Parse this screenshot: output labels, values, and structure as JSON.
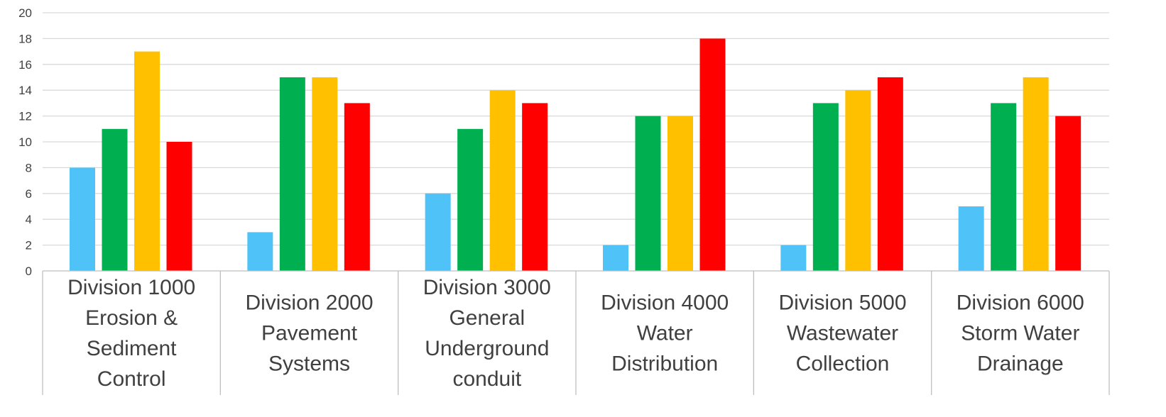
{
  "chart_data": {
    "type": "bar",
    "categories": [
      [
        "Division 1000",
        "Erosion &",
        "Sediment",
        "Control"
      ],
      [
        "Division 2000",
        "Pavement",
        "Systems"
      ],
      [
        "Division 3000",
        "General",
        "Underground",
        "conduit"
      ],
      [
        "Division 4000",
        "Water",
        "Distribution"
      ],
      [
        "Division 5000",
        "Wastewater",
        "Collection"
      ],
      [
        "Division 6000",
        "Storm Water",
        "Drainage"
      ]
    ],
    "series": [
      {
        "color": "#4fc3f7",
        "values": [
          8,
          3,
          6,
          2,
          2,
          5
        ]
      },
      {
        "color": "#00b050",
        "values": [
          11,
          15,
          11,
          12,
          13,
          13
        ]
      },
      {
        "color": "#ffc000",
        "values": [
          17,
          15,
          14,
          12,
          14,
          15
        ]
      },
      {
        "color": "#ff0000",
        "values": [
          10,
          13,
          13,
          18,
          15,
          12
        ]
      }
    ],
    "title": "",
    "xlabel": "",
    "ylabel": "",
    "ylim": [
      0,
      20
    ],
    "yticks": [
      "0",
      "2",
      "4",
      "6",
      "8",
      "10",
      "12",
      "14",
      "16",
      "18",
      "20"
    ],
    "grid": true,
    "legend": "none",
    "colors": {
      "gridline": "#d9d9d9",
      "axis": "#bfbfbf",
      "text": "#404040"
    }
  }
}
